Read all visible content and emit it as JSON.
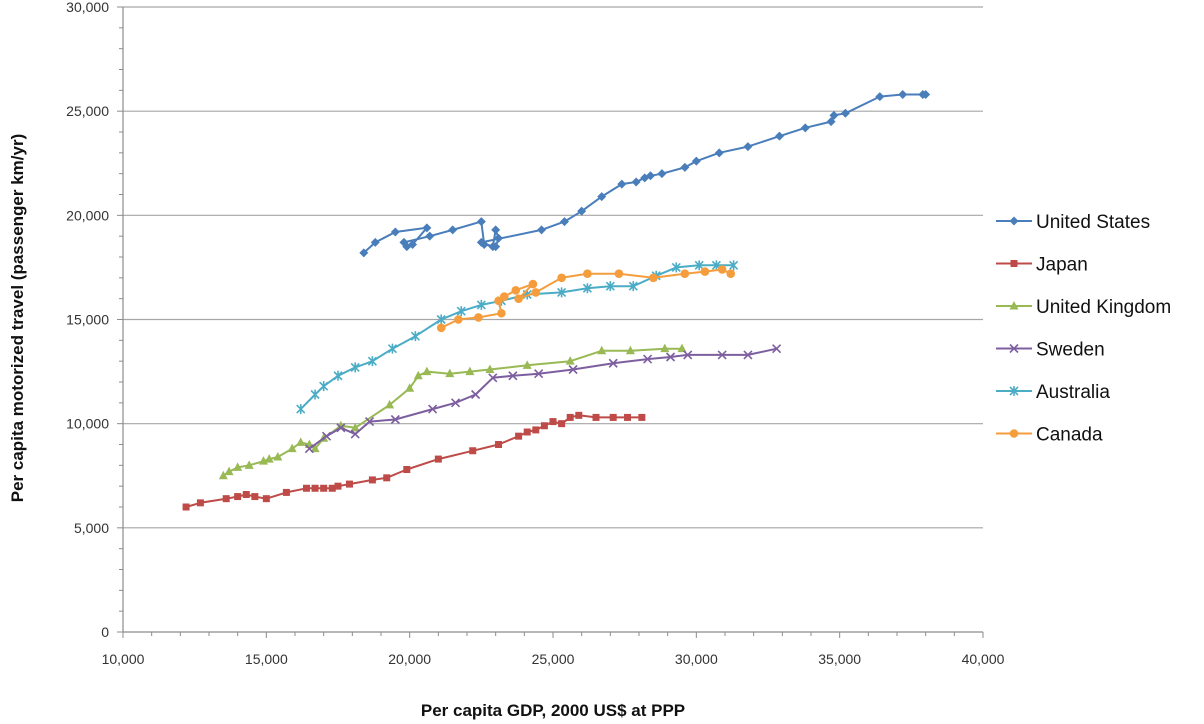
{
  "chart_data": {
    "type": "line",
    "title": "",
    "xlabel": "Per capita GDP, 2000 US$ at PPP",
    "ylabel": "Per capita motorized travel (passenger km/yr)",
    "xlim": [
      10000,
      40000
    ],
    "ylim": [
      0,
      30000
    ],
    "x_ticks": [
      10000,
      15000,
      20000,
      25000,
      30000,
      35000,
      40000
    ],
    "x_tick_labels": [
      "10,000",
      "15,000",
      "20,000",
      "25,000",
      "30,000",
      "35,000",
      "40,000"
    ],
    "y_ticks": [
      0,
      5000,
      10000,
      15000,
      20000,
      25000,
      30000
    ],
    "y_tick_labels": [
      "0",
      "5,000",
      "10,000",
      "15,000",
      "20,000",
      "25,000",
      "30,000"
    ],
    "grid": "horizontal",
    "legend_position": "right",
    "series": [
      {
        "name": "United States",
        "color": "#4a7ebb",
        "marker": "diamond",
        "points": [
          [
            18400,
            18200
          ],
          [
            18800,
            18700
          ],
          [
            19500,
            19200
          ],
          [
            20600,
            19400
          ],
          [
            20100,
            18600
          ],
          [
            19900,
            18500
          ],
          [
            19800,
            18700
          ],
          [
            20700,
            19000
          ],
          [
            21500,
            19300
          ],
          [
            22500,
            19700
          ],
          [
            22600,
            18600
          ],
          [
            23000,
            18500
          ],
          [
            23100,
            18900
          ],
          [
            23000,
            19300
          ],
          [
            22900,
            18500
          ],
          [
            22500,
            18700
          ],
          [
            24600,
            19300
          ],
          [
            25400,
            19700
          ],
          [
            26000,
            20200
          ],
          [
            26700,
            20900
          ],
          [
            27400,
            21500
          ],
          [
            27900,
            21600
          ],
          [
            28200,
            21800
          ],
          [
            28400,
            21900
          ],
          [
            28800,
            22000
          ],
          [
            29600,
            22300
          ],
          [
            30000,
            22600
          ],
          [
            30800,
            23000
          ],
          [
            31800,
            23300
          ],
          [
            32900,
            23800
          ],
          [
            33800,
            24200
          ],
          [
            34700,
            24500
          ],
          [
            34800,
            24800
          ],
          [
            35200,
            24900
          ],
          [
            36400,
            25700
          ],
          [
            37200,
            25800
          ],
          [
            37900,
            25800
          ],
          [
            38000,
            25800
          ]
        ]
      },
      {
        "name": "Japan",
        "color": "#be4b48",
        "marker": "square",
        "points": [
          [
            12200,
            6000
          ],
          [
            12700,
            6200
          ],
          [
            13600,
            6400
          ],
          [
            14000,
            6500
          ],
          [
            14300,
            6600
          ],
          [
            14600,
            6500
          ],
          [
            15000,
            6400
          ],
          [
            15700,
            6700
          ],
          [
            16400,
            6900
          ],
          [
            16700,
            6900
          ],
          [
            17000,
            6900
          ],
          [
            17300,
            6900
          ],
          [
            17500,
            7000
          ],
          [
            17900,
            7100
          ],
          [
            18700,
            7300
          ],
          [
            19200,
            7400
          ],
          [
            19900,
            7800
          ],
          [
            21000,
            8300
          ],
          [
            22200,
            8700
          ],
          [
            23100,
            9000
          ],
          [
            23800,
            9400
          ],
          [
            24100,
            9600
          ],
          [
            24400,
            9700
          ],
          [
            24700,
            9900
          ],
          [
            25000,
            10100
          ],
          [
            25300,
            10000
          ],
          [
            25600,
            10300
          ],
          [
            25900,
            10400
          ],
          [
            26500,
            10300
          ],
          [
            27100,
            10300
          ],
          [
            27600,
            10300
          ],
          [
            28100,
            10300
          ]
        ]
      },
      {
        "name": "United Kingdom",
        "color": "#98b954",
        "marker": "triangle",
        "points": [
          [
            13500,
            7500
          ],
          [
            13700,
            7700
          ],
          [
            14000,
            7900
          ],
          [
            14400,
            8000
          ],
          [
            14900,
            8200
          ],
          [
            15100,
            8300
          ],
          [
            15400,
            8400
          ],
          [
            15900,
            8800
          ],
          [
            16200,
            9100
          ],
          [
            16500,
            9000
          ],
          [
            16700,
            8800
          ],
          [
            17000,
            9300
          ],
          [
            17600,
            9900
          ],
          [
            18100,
            9800
          ],
          [
            19300,
            10900
          ],
          [
            20000,
            11700
          ],
          [
            20300,
            12300
          ],
          [
            20600,
            12500
          ],
          [
            21400,
            12400
          ],
          [
            22100,
            12500
          ],
          [
            22800,
            12600
          ],
          [
            24100,
            12800
          ],
          [
            25600,
            13000
          ],
          [
            26700,
            13500
          ],
          [
            27700,
            13500
          ],
          [
            28900,
            13600
          ],
          [
            29500,
            13600
          ]
        ]
      },
      {
        "name": "Sweden",
        "color": "#7d5fa0",
        "marker": "x",
        "points": [
          [
            16500,
            8800
          ],
          [
            17100,
            9400
          ],
          [
            17600,
            9800
          ],
          [
            18100,
            9500
          ],
          [
            18600,
            10100
          ],
          [
            19500,
            10200
          ],
          [
            20800,
            10700
          ],
          [
            21600,
            11000
          ],
          [
            22300,
            11400
          ],
          [
            22900,
            12200
          ],
          [
            23600,
            12300
          ],
          [
            24500,
            12400
          ],
          [
            25700,
            12600
          ],
          [
            27100,
            12900
          ],
          [
            28300,
            13100
          ],
          [
            29100,
            13200
          ],
          [
            29700,
            13300
          ],
          [
            30900,
            13300
          ],
          [
            31800,
            13300
          ],
          [
            32800,
            13600
          ]
        ]
      },
      {
        "name": "Australia",
        "color": "#4bacc6",
        "marker": "star",
        "points": [
          [
            16200,
            10700
          ],
          [
            16700,
            11400
          ],
          [
            17000,
            11800
          ],
          [
            17500,
            12300
          ],
          [
            18100,
            12700
          ],
          [
            18700,
            13000
          ],
          [
            19400,
            13600
          ],
          [
            20200,
            14200
          ],
          [
            21100,
            15000
          ],
          [
            21800,
            15400
          ],
          [
            22500,
            15700
          ],
          [
            23200,
            15900
          ],
          [
            24100,
            16200
          ],
          [
            25300,
            16300
          ],
          [
            26200,
            16500
          ],
          [
            27000,
            16600
          ],
          [
            27800,
            16600
          ],
          [
            28600,
            17100
          ],
          [
            29300,
            17500
          ],
          [
            30100,
            17600
          ],
          [
            30700,
            17600
          ],
          [
            31300,
            17600
          ]
        ]
      },
      {
        "name": "Canada",
        "color": "#f59d3d",
        "marker": "circle",
        "points": [
          [
            21100,
            14600
          ],
          [
            21700,
            15000
          ],
          [
            22400,
            15100
          ],
          [
            23200,
            15300
          ],
          [
            23100,
            15900
          ],
          [
            23300,
            16100
          ],
          [
            23700,
            16400
          ],
          [
            24300,
            16700
          ],
          [
            23800,
            16000
          ],
          [
            24400,
            16300
          ],
          [
            25300,
            17000
          ],
          [
            26200,
            17200
          ],
          [
            27300,
            17200
          ],
          [
            28500,
            17000
          ],
          [
            29600,
            17200
          ],
          [
            30300,
            17300
          ],
          [
            30900,
            17400
          ],
          [
            31200,
            17200
          ]
        ]
      }
    ]
  }
}
